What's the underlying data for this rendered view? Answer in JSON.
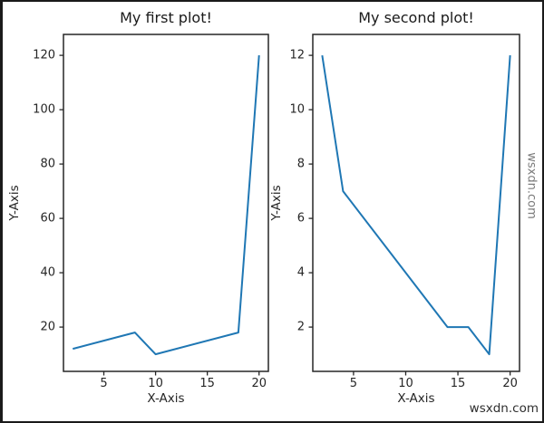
{
  "watermarks": {
    "bottom_right": "wsxdn.com",
    "right_side": "wsxdn.com"
  },
  "colors": {
    "line": "#1f77b4",
    "axis": "#262626",
    "text": "#262626",
    "background": "#ffffff",
    "frame_border": "#1a1a1a"
  },
  "chart_data": [
    {
      "type": "line",
      "title": "My first plot!",
      "xlabel": "X-Axis",
      "ylabel": "Y-Axis",
      "x": [
        2,
        8,
        10,
        18,
        20
      ],
      "y": [
        12,
        18,
        10,
        18,
        120
      ],
      "xticks": [
        5,
        10,
        15,
        20
      ],
      "yticks": [
        20,
        40,
        60,
        80,
        100,
        120
      ],
      "xlim": [
        1.1,
        20.9
      ],
      "ylim": [
        3.7,
        127.7
      ],
      "line_color": "#1f77b4",
      "grid": false,
      "legend": "none"
    },
    {
      "type": "line",
      "title": "My second plot!",
      "xlabel": "X-Axis",
      "ylabel": "Y-Axis",
      "x": [
        2,
        4,
        14,
        16,
        18,
        20
      ],
      "y": [
        12,
        7,
        2,
        2,
        1,
        12
      ],
      "xticks": [
        5,
        10,
        15,
        20
      ],
      "yticks": [
        2,
        4,
        6,
        8,
        10,
        12
      ],
      "xlim": [
        1.1,
        20.9
      ],
      "ylim": [
        0.37,
        12.77
      ],
      "line_color": "#1f77b4",
      "grid": false,
      "legend": "none"
    }
  ]
}
